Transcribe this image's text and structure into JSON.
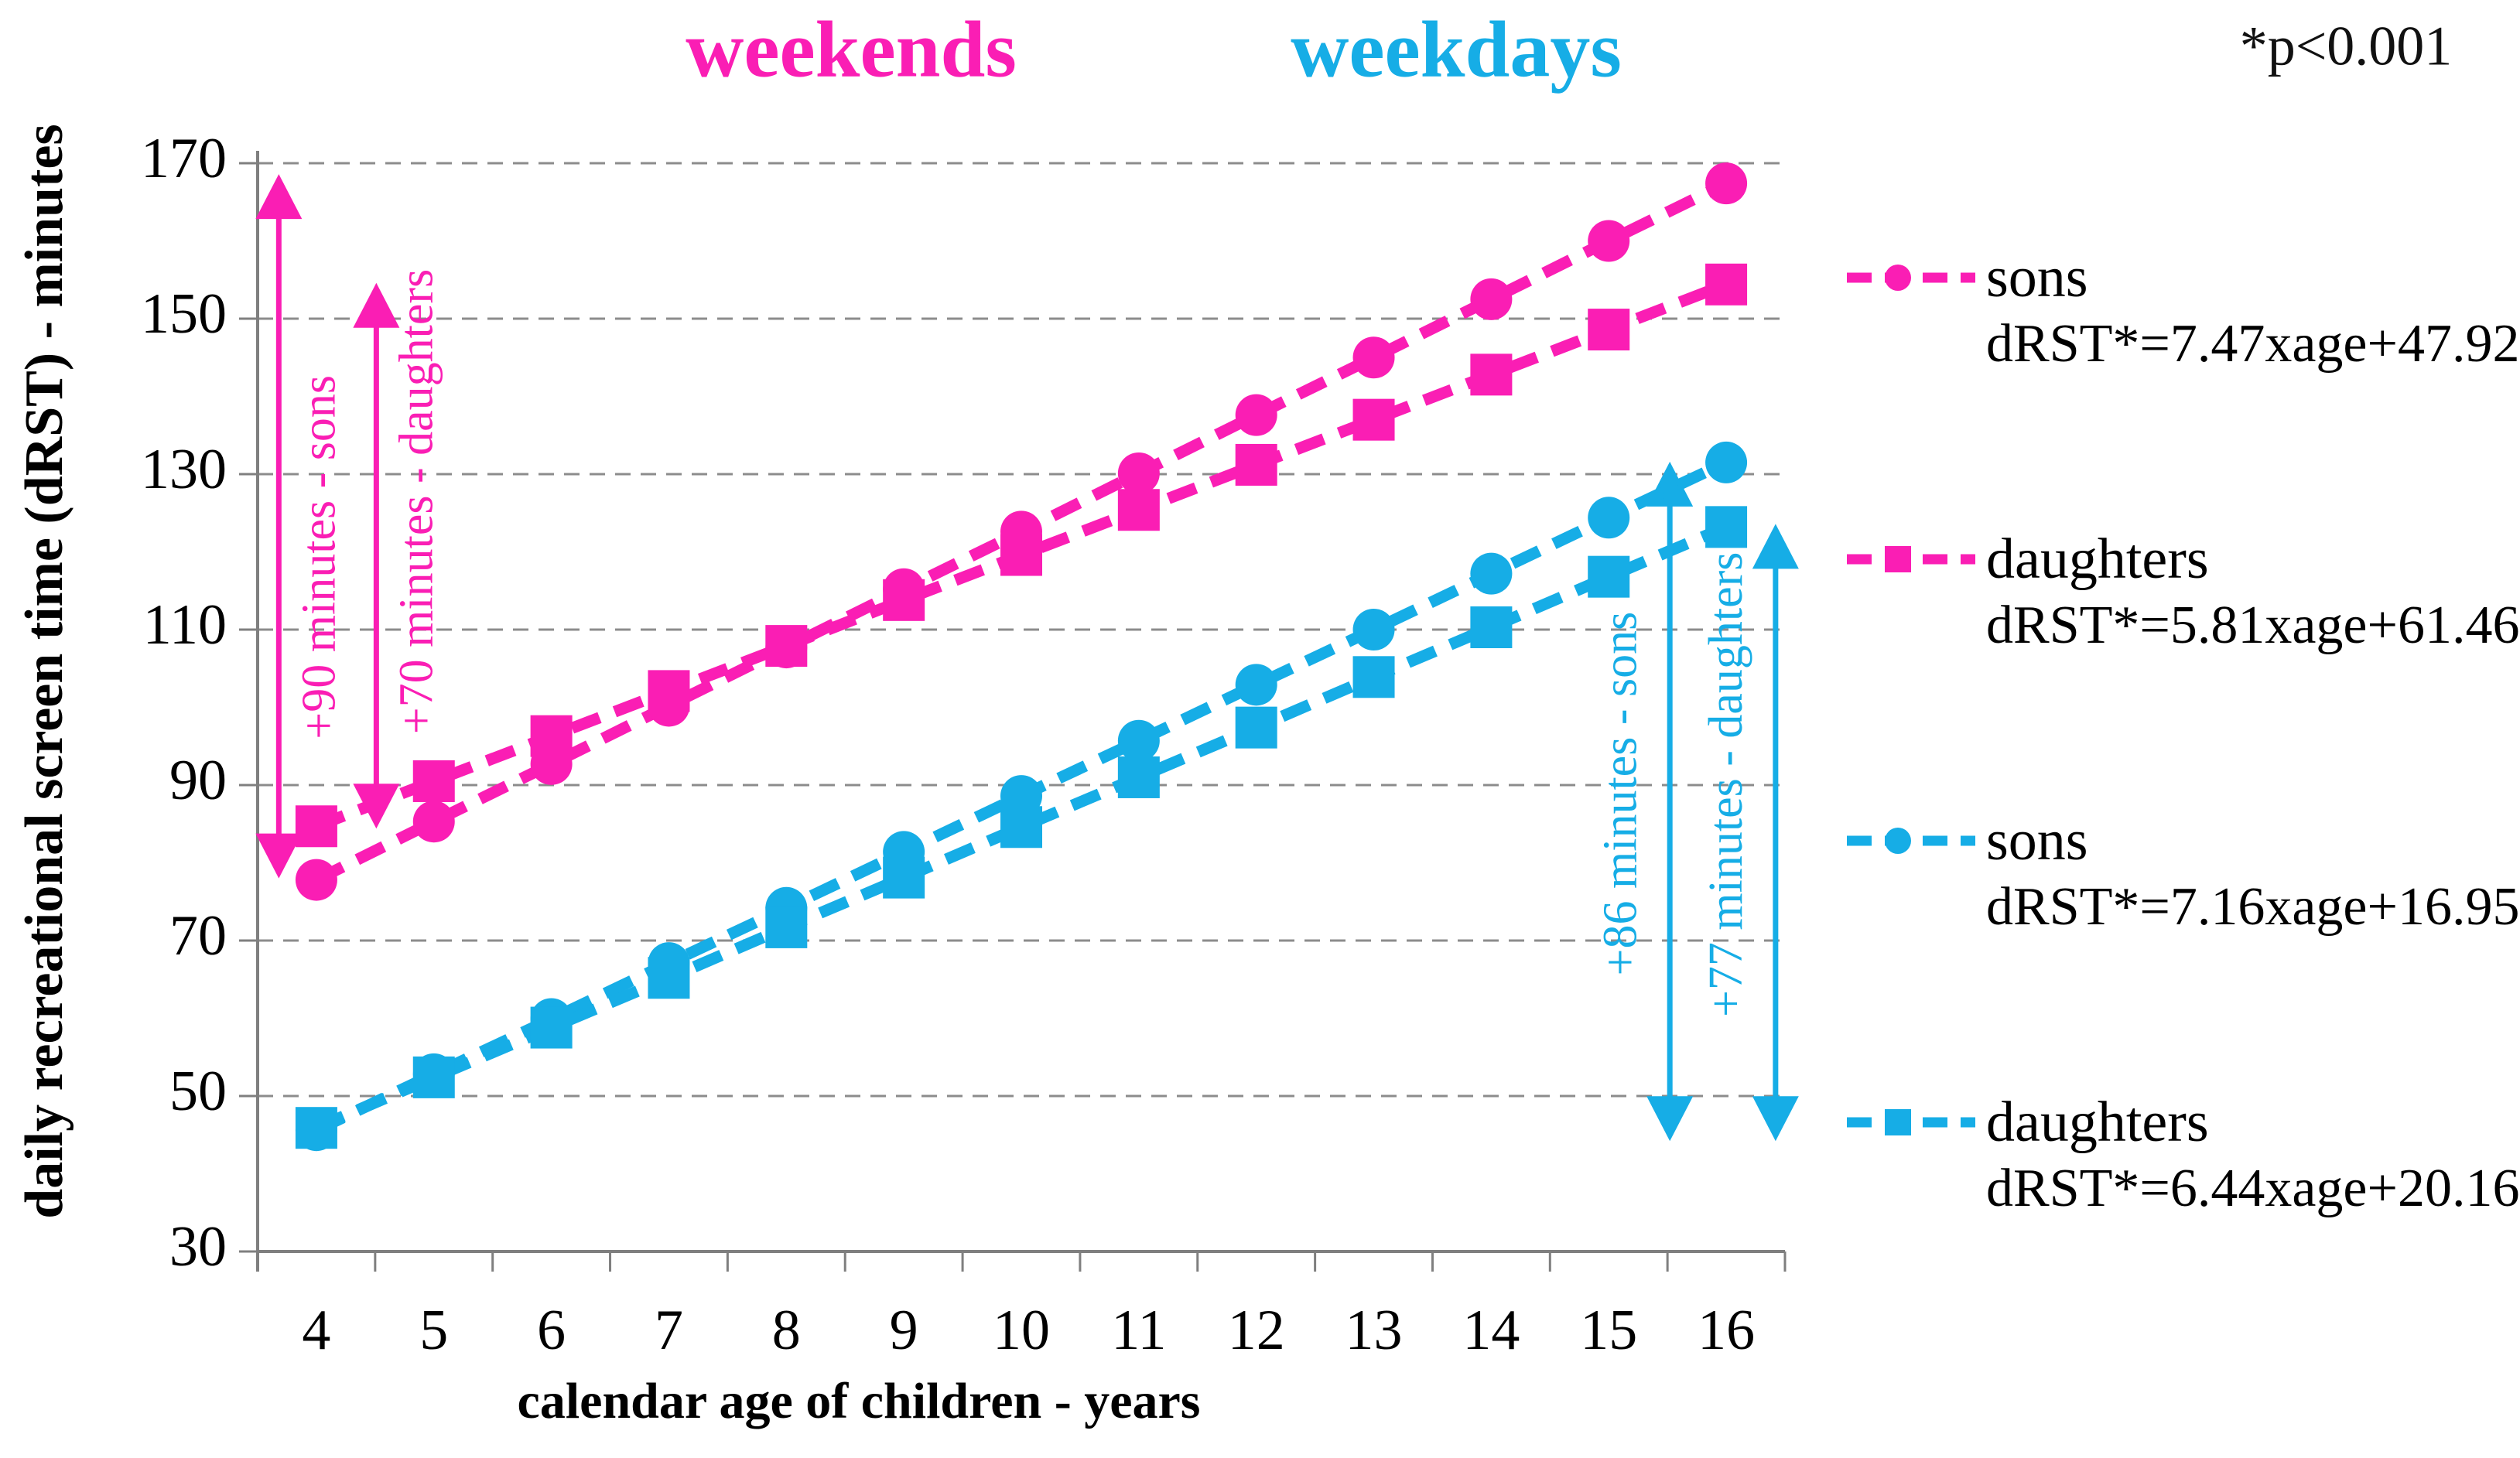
{
  "header": {
    "weekends_title": "weekends",
    "weekdays_title": "weekdays",
    "significance_note": "*p<0.001"
  },
  "colors": {
    "weekends": "#fa1eb4",
    "weekdays": "#16ade6",
    "grid": "#8c8c8c",
    "axis": "#7f7f7f",
    "text": "#000000"
  },
  "chart_data": {
    "type": "line",
    "xlabel": "calendar age of children - years",
    "ylabel": "daily recreational screen time (dRST) - minutes",
    "x": [
      4,
      5,
      6,
      7,
      8,
      9,
      10,
      11,
      12,
      13,
      14,
      15,
      16
    ],
    "yticks": [
      30,
      50,
      70,
      90,
      110,
      130,
      150,
      170
    ],
    "ylim": [
      30,
      170
    ],
    "grid": "horizontal-dashed",
    "legend_position": "right",
    "series": [
      {
        "group": "weekends",
        "name": "sons",
        "marker": "circle",
        "equation": "dRST*=7.47xage+47.92",
        "slope": 7.47,
        "intercept": 47.92,
        "values": [
          77.8,
          85.3,
          92.7,
          100.2,
          107.7,
          115.2,
          122.6,
          130.1,
          137.6,
          145.0,
          152.5,
          160.0,
          167.4
        ]
      },
      {
        "group": "weekends",
        "name": "daughters",
        "marker": "square",
        "equation": "dRST*=5.81xage+61.46",
        "slope": 5.81,
        "intercept": 61.46,
        "values": [
          84.7,
          90.5,
          96.3,
          102.1,
          107.9,
          113.8,
          119.6,
          125.4,
          131.2,
          137.0,
          142.8,
          148.6,
          154.4
        ]
      },
      {
        "group": "weekdays",
        "name": "sons",
        "marker": "circle",
        "equation": "dRST*=7.16xage+16.95",
        "slope": 7.16,
        "intercept": 16.95,
        "values": [
          45.6,
          52.8,
          59.9,
          67.1,
          74.2,
          81.4,
          88.6,
          95.7,
          102.9,
          110.0,
          117.2,
          124.4,
          131.5
        ]
      },
      {
        "group": "weekdays",
        "name": "daughters",
        "marker": "square",
        "equation": "dRST*=6.44xage+20.16",
        "slope": 6.44,
        "intercept": 20.16,
        "values": [
          45.9,
          52.4,
          58.8,
          65.2,
          71.7,
          78.1,
          84.6,
          91.0,
          97.4,
          103.9,
          110.3,
          116.8,
          123.2
        ]
      }
    ],
    "annotations": [
      {
        "text": "+90 minutes - sons",
        "group": "weekends",
        "x_age": 3.68,
        "v_low": 78.0,
        "v_high": 168.6,
        "text_dx": 58,
        "text_dy": 40
      },
      {
        "text": "+70 minutes - daughters",
        "group": "weekends",
        "x_age": 4.51,
        "v_low": 84.4,
        "v_high": 154.6,
        "text_dx": 58,
        "text_dy": -70
      },
      {
        "text": "+86 minutes - sons",
        "group": "weekdays",
        "x_age": 15.52,
        "v_low": 44.2,
        "v_high": 131.6,
        "text_dx": -58,
        "text_dy": -10
      },
      {
        "text": "+77 minutes - daughters",
        "group": "weekdays",
        "x_age": 16.42,
        "v_low": 44.2,
        "v_high": 123.6,
        "text_dx": -58,
        "text_dy": -62
      }
    ]
  }
}
